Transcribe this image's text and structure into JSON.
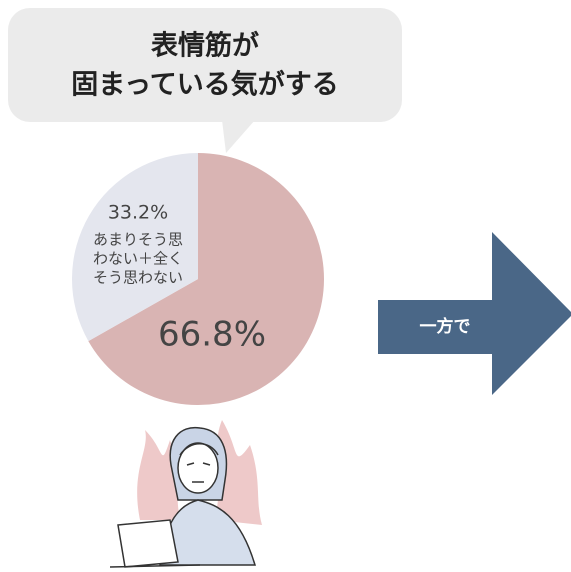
{
  "chart_data": {
    "type": "pie",
    "title": [
      "表情筋が",
      "固まっている気がする"
    ],
    "categories": [
      null,
      [
        "あまりそう思",
        "わない＋全く",
        "そう思わない"
      ]
    ],
    "values": [
      66.8,
      33.2
    ],
    "value_labels": [
      "66.8%",
      "33.2%"
    ],
    "colors": [
      "#d9b4b3",
      "#e4e6ee"
    ],
    "annotation": "一方で",
    "annotation_color": "#4a6787"
  }
}
